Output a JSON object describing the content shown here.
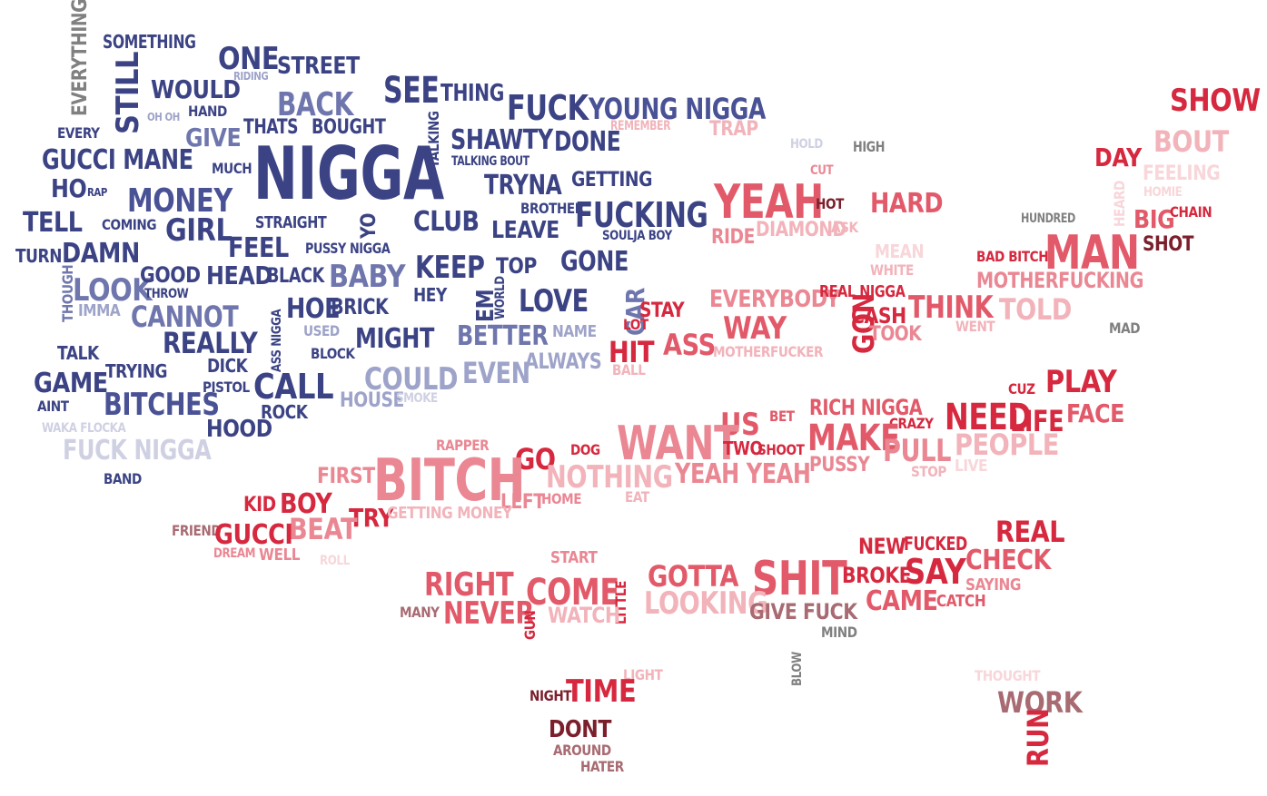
{
  "palette": {
    "navy": "#3b4384",
    "indigo": "#4a5296",
    "slate": "#6e76ad",
    "lavender": "#9ea3c9",
    "mist": "#cfd1e3",
    "grey": "#808080",
    "dark_red": "#7a1f2b",
    "red": "#d6283e",
    "coral": "#e25a6a",
    "salmon": "#ea8793",
    "pink": "#f2b3ba",
    "blush": "#f8d6da",
    "mauve": "#a86b72"
  },
  "words": [
    {
      "text": "EVERYTHING",
      "color": "#808080",
      "vertical": true
    },
    {
      "text": "SOMETHING",
      "color": "#3b4384"
    },
    {
      "text": "ONE",
      "color": "#3b4384"
    },
    {
      "text": "STREET",
      "color": "#3b4384"
    },
    {
      "text": "RIDING",
      "color": "#9ea3c9"
    },
    {
      "text": "STILL",
      "color": "#3b4384",
      "vertical": true
    },
    {
      "text": "WOULD",
      "color": "#3b4384"
    },
    {
      "text": "OH OH",
      "color": "#9ea3c9"
    },
    {
      "text": "HAND",
      "color": "#3b4384"
    },
    {
      "text": "BACK",
      "color": "#6e76ad"
    },
    {
      "text": "SEE",
      "color": "#3b4384"
    },
    {
      "text": "THING",
      "color": "#3b4384"
    },
    {
      "text": "FUCK",
      "color": "#3b4384"
    },
    {
      "text": "YOUNG NIGGA",
      "color": "#4a5296"
    },
    {
      "text": "EVERY",
      "color": "#3b4384"
    },
    {
      "text": "GIVE",
      "color": "#6e76ad"
    },
    {
      "text": "THATS",
      "color": "#3b4384"
    },
    {
      "text": "BOUGHT",
      "color": "#3b4384"
    },
    {
      "text": "TALKING",
      "color": "#3b4384",
      "vertical": true
    },
    {
      "text": "SHAWTY",
      "color": "#3b4384"
    },
    {
      "text": "DONE",
      "color": "#3b4384"
    },
    {
      "text": "REMEMBER",
      "color": "#f2b3ba"
    },
    {
      "text": "TRAP",
      "color": "#f2b3ba"
    },
    {
      "text": "GUCCI MANE",
      "color": "#3b4384"
    },
    {
      "text": "NIGGA",
      "color": "#3b4384"
    },
    {
      "text": "TALKING BOUT",
      "color": "#3b4384"
    },
    {
      "text": "MUCH",
      "color": "#3b4384"
    },
    {
      "text": "HO",
      "color": "#3b4384"
    },
    {
      "text": "RAP",
      "color": "#3b4384"
    },
    {
      "text": "MONEY",
      "color": "#4a5296"
    },
    {
      "text": "TRYNA",
      "color": "#3b4384"
    },
    {
      "text": "GETTING",
      "color": "#3b4384"
    },
    {
      "text": "TELL",
      "color": "#3b4384"
    },
    {
      "text": "COMING",
      "color": "#3b4384"
    },
    {
      "text": "GIRL",
      "color": "#3b4384"
    },
    {
      "text": "STRAIGHT",
      "color": "#3b4384"
    },
    {
      "text": "YO",
      "color": "#3b4384",
      "vertical": true
    },
    {
      "text": "CLUB",
      "color": "#3b4384"
    },
    {
      "text": "BROTHER",
      "color": "#3b4384"
    },
    {
      "text": "FUCKING",
      "color": "#3b4384"
    },
    {
      "text": "LEAVE",
      "color": "#3b4384"
    },
    {
      "text": "SOULJA BOY",
      "color": "#3b4384"
    },
    {
      "text": "TURN",
      "color": "#3b4384"
    },
    {
      "text": "DAMN",
      "color": "#3b4384"
    },
    {
      "text": "FEEL",
      "color": "#3b4384"
    },
    {
      "text": "PUSSY NIGGA",
      "color": "#3b4384"
    },
    {
      "text": "THOUGH",
      "color": "#6e76ad",
      "vertical": true
    },
    {
      "text": "LOOK",
      "color": "#6e76ad"
    },
    {
      "text": "GOOD",
      "color": "#3b4384"
    },
    {
      "text": "THROW",
      "color": "#3b4384"
    },
    {
      "text": "HEAD",
      "color": "#3b4384"
    },
    {
      "text": "BLACK",
      "color": "#3b4384"
    },
    {
      "text": "BABY",
      "color": "#6e76ad"
    },
    {
      "text": "KEEP",
      "color": "#3b4384"
    },
    {
      "text": "TOP",
      "color": "#3b4384"
    },
    {
      "text": "GONE",
      "color": "#3b4384"
    },
    {
      "text": "IMMA",
      "color": "#9ea3c9"
    },
    {
      "text": "CANNOT",
      "color": "#6e76ad"
    },
    {
      "text": "ASS NIGGA",
      "color": "#3b4384",
      "vertical": true
    },
    {
      "text": "HOE",
      "color": "#3b4384"
    },
    {
      "text": "BRICK",
      "color": "#3b4384"
    },
    {
      "text": "HEY",
      "color": "#3b4384"
    },
    {
      "text": "EM",
      "color": "#3b4384",
      "vertical": true
    },
    {
      "text": "WORLD",
      "color": "#3b4384",
      "vertical": true
    },
    {
      "text": "LOVE",
      "color": "#3b4384"
    },
    {
      "text": "CAR",
      "color": "#6e76ad",
      "vertical": true
    },
    {
      "text": "REALLY",
      "color": "#3b4384"
    },
    {
      "text": "USED",
      "color": "#9ea3c9"
    },
    {
      "text": "MIGHT",
      "color": "#3b4384"
    },
    {
      "text": "BETTER",
      "color": "#6e76ad"
    },
    {
      "text": "NAME",
      "color": "#9ea3c9"
    },
    {
      "text": "TALK",
      "color": "#3b4384"
    },
    {
      "text": "BLOCK",
      "color": "#3b4384"
    },
    {
      "text": "ALWAYS",
      "color": "#9ea3c9"
    },
    {
      "text": "TRYING",
      "color": "#3b4384"
    },
    {
      "text": "DICK",
      "color": "#3b4384"
    },
    {
      "text": "COULD",
      "color": "#9ea3c9"
    },
    {
      "text": "EVEN",
      "color": "#9ea3c9"
    },
    {
      "text": "GAME",
      "color": "#3b4384"
    },
    {
      "text": "PISTOL",
      "color": "#3b4384"
    },
    {
      "text": "CALL",
      "color": "#3b4384"
    },
    {
      "text": "AINT",
      "color": "#3b4384"
    },
    {
      "text": "BITCHES",
      "color": "#4a5296"
    },
    {
      "text": "HOUSE",
      "color": "#9ea3c9"
    },
    {
      "text": "SMOKE",
      "color": "#cfd1e3"
    },
    {
      "text": "ROCK",
      "color": "#3b4384"
    },
    {
      "text": "HOOD",
      "color": "#3b4384"
    },
    {
      "text": "WAKA FLOCKA",
      "color": "#cfd1e3"
    },
    {
      "text": "FUCK NIGGA",
      "color": "#cfd1e3"
    },
    {
      "text": "BAND",
      "color": "#3b4384"
    },
    {
      "text": "SHOW",
      "color": "#d6283e"
    },
    {
      "text": "BOUT",
      "color": "#f2b3ba"
    },
    {
      "text": "HOLD",
      "color": "#cfd1e3"
    },
    {
      "text": "HIGH",
      "color": "#808080"
    },
    {
      "text": "DAY",
      "color": "#d6283e"
    },
    {
      "text": "FEELING",
      "color": "#f8d6da"
    },
    {
      "text": "CUT",
      "color": "#ea8793"
    },
    {
      "text": "YEAH",
      "color": "#e25a6a"
    },
    {
      "text": "HOT",
      "color": "#7a1f2b"
    },
    {
      "text": "HARD",
      "color": "#e25a6a"
    },
    {
      "text": "HEARD",
      "color": "#f8d6da",
      "vertical": true
    },
    {
      "text": "HOMIE",
      "color": "#f8d6da"
    },
    {
      "text": "BIG",
      "color": "#e25a6a"
    },
    {
      "text": "CHAIN",
      "color": "#d6283e"
    },
    {
      "text": "RIDE",
      "color": "#ea8793"
    },
    {
      "text": "DIAMOND",
      "color": "#f2b3ba"
    },
    {
      "text": "ASK",
      "color": "#f2b3ba"
    },
    {
      "text": "HUNDRED",
      "color": "#808080"
    },
    {
      "text": "SHOT",
      "color": "#7a1f2b"
    },
    {
      "text": "MEAN",
      "color": "#f8d6da"
    },
    {
      "text": "BAD BITCH",
      "color": "#d6283e"
    },
    {
      "text": "MAN",
      "color": "#e25a6a"
    },
    {
      "text": "WHITE",
      "color": "#f2b3ba"
    },
    {
      "text": "MOTHERFUCKING",
      "color": "#ea8793"
    },
    {
      "text": "EVERYBODY",
      "color": "#ea8793"
    },
    {
      "text": "REAL NIGGA",
      "color": "#d6283e"
    },
    {
      "text": "STAY",
      "color": "#d6283e"
    },
    {
      "text": "GON",
      "color": "#d6283e",
      "vertical": true
    },
    {
      "text": "CASH",
      "color": "#d6283e"
    },
    {
      "text": "THINK",
      "color": "#e25a6a"
    },
    {
      "text": "TOLD",
      "color": "#f2b3ba"
    },
    {
      "text": "LOT",
      "color": "#d6283e"
    },
    {
      "text": "WAY",
      "color": "#e25a6a"
    },
    {
      "text": "TOOK",
      "color": "#ea8793"
    },
    {
      "text": "WENT",
      "color": "#f2b3ba"
    },
    {
      "text": "MAD",
      "color": "#808080"
    },
    {
      "text": "HIT",
      "color": "#d6283e"
    },
    {
      "text": "ASS",
      "color": "#e25a6a"
    },
    {
      "text": "MOTHERFUCKER",
      "color": "#f2b3ba"
    },
    {
      "text": "BALL",
      "color": "#f2b3ba"
    },
    {
      "text": "CUZ",
      "color": "#d6283e"
    },
    {
      "text": "PLAY",
      "color": "#d6283e"
    },
    {
      "text": "RICH NIGGA",
      "color": "#e25a6a"
    },
    {
      "text": "BET",
      "color": "#e25a6a"
    },
    {
      "text": "CRAZY",
      "color": "#d6283e"
    },
    {
      "text": "NEED",
      "color": "#d6283e"
    },
    {
      "text": "LIFE",
      "color": "#d6283e"
    },
    {
      "text": "FACE",
      "color": "#e25a6a"
    },
    {
      "text": "US",
      "color": "#e25a6a"
    },
    {
      "text": "WANT",
      "color": "#ea8793"
    },
    {
      "text": "RAPPER",
      "color": "#ea8793"
    },
    {
      "text": "DOG",
      "color": "#d6283e"
    },
    {
      "text": "TWO",
      "color": "#d6283e"
    },
    {
      "text": "SHOOT",
      "color": "#d6283e"
    },
    {
      "text": "MAKE",
      "color": "#e25a6a"
    },
    {
      "text": "PULL",
      "color": "#ea8793"
    },
    {
      "text": "PEOPLE",
      "color": "#f2b3ba"
    },
    {
      "text": "GO",
      "color": "#d6283e"
    },
    {
      "text": "FIRST",
      "color": "#ea8793"
    },
    {
      "text": "BITCH",
      "color": "#ea8793"
    },
    {
      "text": "NOTHING",
      "color": "#f2b3ba"
    },
    {
      "text": "YEAH YEAH",
      "color": "#ea8793"
    },
    {
      "text": "PUSSY",
      "color": "#ea8793"
    },
    {
      "text": "STOP",
      "color": "#f2b3ba"
    },
    {
      "text": "LIVE",
      "color": "#f8d6da"
    },
    {
      "text": "KID",
      "color": "#d6283e"
    },
    {
      "text": "BOY",
      "color": "#d6283e"
    },
    {
      "text": "LEFT",
      "color": "#ea8793"
    },
    {
      "text": "HOME",
      "color": "#ea8793"
    },
    {
      "text": "EAT",
      "color": "#f2b3ba"
    },
    {
      "text": "TRY",
      "color": "#d6283e"
    },
    {
      "text": "GETTING MONEY",
      "color": "#f2b3ba"
    },
    {
      "text": "BEAT",
      "color": "#ea8793"
    },
    {
      "text": "FRIEND",
      "color": "#a86b72"
    },
    {
      "text": "GUCCI",
      "color": "#d6283e"
    },
    {
      "text": "DREAM",
      "color": "#ea8793"
    },
    {
      "text": "WELL",
      "color": "#ea8793"
    },
    {
      "text": "ROLL",
      "color": "#f8d6da"
    },
    {
      "text": "REAL",
      "color": "#d6283e"
    },
    {
      "text": "NEW",
      "color": "#d6283e"
    },
    {
      "text": "FUCKED",
      "color": "#d6283e"
    },
    {
      "text": "START",
      "color": "#ea8793"
    },
    {
      "text": "CHECK",
      "color": "#e25a6a"
    },
    {
      "text": "SAY",
      "color": "#d6283e"
    },
    {
      "text": "SAYING",
      "color": "#ea8793"
    },
    {
      "text": "RIGHT",
      "color": "#e25a6a"
    },
    {
      "text": "COME",
      "color": "#e25a6a"
    },
    {
      "text": "LITTLE",
      "color": "#d6283e",
      "vertical": true
    },
    {
      "text": "GOTTA",
      "color": "#e25a6a"
    },
    {
      "text": "SHIT",
      "color": "#e25a6a"
    },
    {
      "text": "BROKE",
      "color": "#d6283e"
    },
    {
      "text": "LOOKING",
      "color": "#f2b3ba"
    },
    {
      "text": "CAME",
      "color": "#e25a6a"
    },
    {
      "text": "CATCH",
      "color": "#e25a6a"
    },
    {
      "text": "MANY",
      "color": "#a86b72"
    },
    {
      "text": "NEVER",
      "color": "#e25a6a"
    },
    {
      "text": "GUN",
      "color": "#d6283e",
      "vertical": true
    },
    {
      "text": "WATCH",
      "color": "#f2b3ba"
    },
    {
      "text": "GIVE FUCK",
      "color": "#a86b72"
    },
    {
      "text": "MIND",
      "color": "#808080"
    },
    {
      "text": "LIGHT",
      "color": "#f2b3ba"
    },
    {
      "text": "BLOW",
      "color": "#808080",
      "vertical": true
    },
    {
      "text": "THOUGHT",
      "color": "#f8d6da"
    },
    {
      "text": "NIGHT",
      "color": "#7a1f2b"
    },
    {
      "text": "TIME",
      "color": "#d6283e"
    },
    {
      "text": "WORK",
      "color": "#a86b72"
    },
    {
      "text": "DONT",
      "color": "#7a1f2b"
    },
    {
      "text": "RUN",
      "color": "#d6283e",
      "vertical": true
    },
    {
      "text": "AROUND",
      "color": "#a86b72"
    },
    {
      "text": "HATER",
      "color": "#a86b72"
    }
  ]
}
